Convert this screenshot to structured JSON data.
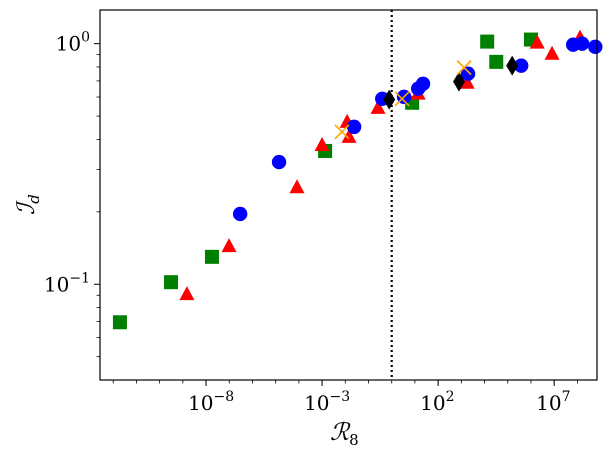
{
  "chart_data": {
    "type": "scatter",
    "title": "",
    "xlabel": "ℛ",
    "xlabel_sub": "8",
    "ylabel": "ℐ",
    "ylabel_sub": "d",
    "xscale": "log",
    "yscale": "log",
    "xlim": [
      2.7e-13,
      700000000.0
    ],
    "ylim": [
      0.04,
      1.38
    ],
    "grid": false,
    "x_ticks": [
      {
        "value": 1e-08,
        "base": "10",
        "exp": "−8"
      },
      {
        "value": 0.001,
        "base": "10",
        "exp": "−3"
      },
      {
        "value": 100.0,
        "base": "10",
        "exp": "2"
      },
      {
        "value": 10000000.0,
        "base": "10",
        "exp": "7"
      }
    ],
    "y_ticks": [
      {
        "value": 1,
        "base": "10",
        "exp": "0"
      },
      {
        "value": 0.1,
        "base": "10",
        "exp": "−1"
      }
    ],
    "vline": {
      "x": 1,
      "style": "dotted",
      "color": "#000000"
    },
    "series": [
      {
        "name": "squares",
        "marker": "square",
        "color": "#008000",
        "x": [
          1.95e-12,
          3.1e-10,
          1.8e-08,
          0.00135,
          7.6,
          13000.0,
          32000.0,
          1000000.0
        ],
        "y": [
          0.0695,
          0.102,
          0.13,
          0.358,
          0.568,
          1.02,
          0.84,
          1.04
        ]
      },
      {
        "name": "triangles",
        "marker": "triangle",
        "color": "#ff0000",
        "x": [
          1.5e-09,
          9.8e-08,
          8.3e-05,
          0.001,
          0.012,
          0.0145,
          0.257,
          13.8,
          1780,
          1860000.0,
          8100000.0,
          130000000.0
        ],
        "y": [
          0.091,
          0.144,
          0.253,
          0.379,
          0.473,
          0.41,
          0.541,
          0.62,
          0.688,
          1.01,
          0.908,
          1.06
        ]
      },
      {
        "name": "circles",
        "marker": "circle",
        "color": "#0000ff",
        "x": [
          2.95e-07,
          1.4e-05,
          0.024,
          0.39,
          3.4,
          13.8,
          22.4,
          1950,
          380000.0,
          66000000.0,
          160000000.0,
          590000000.0
        ],
        "y": [
          0.196,
          0.322,
          0.451,
          0.59,
          0.601,
          0.65,
          0.681,
          0.75,
          0.81,
          0.99,
          1.0,
          0.97
        ]
      },
      {
        "name": "diamonds",
        "marker": "diamond",
        "color": "#000000",
        "x": [
          0.78,
          794,
          155000.0
        ],
        "y": [
          0.585,
          0.695,
          0.81
        ]
      },
      {
        "name": "crosses",
        "marker": "x",
        "color": "#ffa500",
        "x": [
          0.0072,
          2.8,
          1320
        ],
        "y": [
          0.43,
          0.59,
          0.795
        ]
      }
    ]
  }
}
